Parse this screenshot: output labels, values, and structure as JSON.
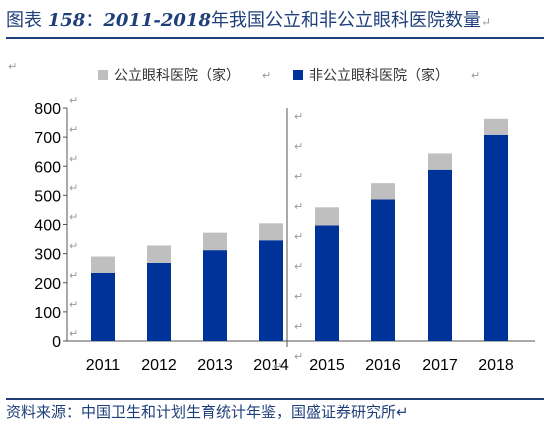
{
  "title": {
    "prefix": "图表 ",
    "number": "158",
    "colon": "：",
    "years": "2011-2018",
    "text": "年我国公立和非公立眼科医院数量",
    "mark": "↵"
  },
  "source": "资料来源：中国卫生和计划生育统计年鉴，国盛证券研究所↵",
  "colors": {
    "public": "#bfbfbf",
    "private": "#003399",
    "text": "#1f3f7a"
  },
  "chart_data": {
    "type": "bar",
    "stacked": true,
    "categories": [
      "2011",
      "2012",
      "2013",
      "2014",
      "2015",
      "2016",
      "2017",
      "2018"
    ],
    "series": [
      {
        "name": "非公立眼科医院（家）",
        "values": [
          234,
          268,
          312,
          346,
          397,
          486,
          588,
          708
        ]
      },
      {
        "name": "公立眼科医院（家）",
        "values": [
          56,
          60,
          60,
          58,
          62,
          56,
          56,
          55
        ]
      }
    ],
    "ylim": [
      0,
      800
    ],
    "yticks": [
      "0",
      "100",
      "200",
      "300",
      "400",
      "500",
      "600",
      "700",
      "800"
    ],
    "grid": false,
    "legend_placement": "top",
    "legend": [
      {
        "name": "公立眼科医院（家）",
        "mark": "↵"
      },
      {
        "name": "非公立眼科医院（家）",
        "mark": "↵"
      }
    ],
    "stray_marks": "↵"
  }
}
